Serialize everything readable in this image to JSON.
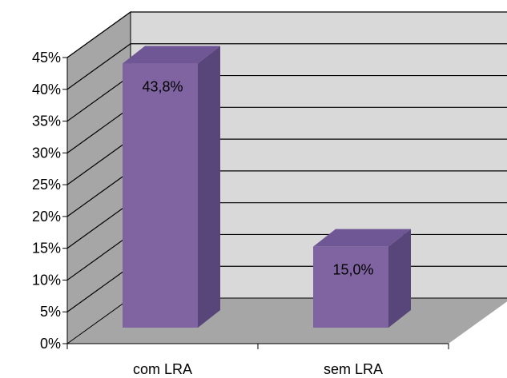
{
  "chart_data": {
    "type": "bar",
    "style": "3d-column",
    "categories": [
      "com LRA",
      "sem LRA"
    ],
    "values": [
      43.8,
      15.0
    ],
    "data_labels": [
      "43,8%",
      "15,0%"
    ],
    "y_ticks": [
      "0%",
      "5%",
      "10%",
      "15%",
      "20%",
      "25%",
      "30%",
      "35%",
      "40%",
      "45%"
    ],
    "ylim": [
      0,
      45
    ],
    "grid": true,
    "legend": "none",
    "title": "",
    "xlabel": "",
    "ylabel": "",
    "colors": {
      "bar_front": "#8064a2",
      "bar_side": "#584579",
      "bar_top": "#6f5694",
      "back_wall": "#d9d9d9",
      "side_wall": "#a6a6a6",
      "floor": "#a6a6a6",
      "grid": "#000000"
    }
  }
}
